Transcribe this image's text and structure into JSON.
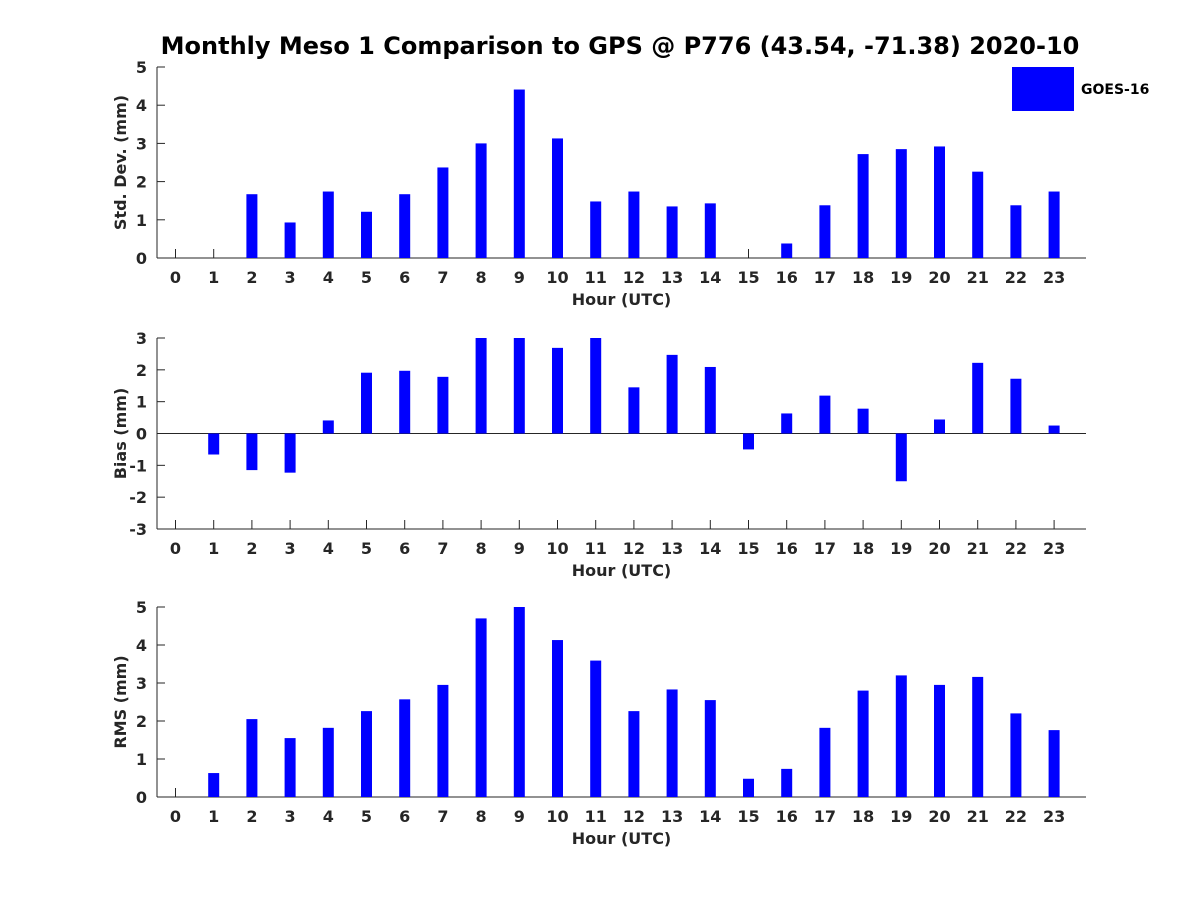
{
  "title": "Monthly Meso 1 Comparison to GPS @ P776 (43.54, -71.38) 2020-10",
  "colors": {
    "bar": "#0000ff",
    "axis": "#262626"
  },
  "legend": {
    "label": "GOES-16",
    "placement": "top-right"
  },
  "chart_data": [
    {
      "type": "bar",
      "title": "",
      "xlabel": "Hour (UTC)",
      "ylabel": "Std. Dev. (mm)",
      "ylim": [
        0,
        5
      ],
      "yticks": [
        0,
        1,
        2,
        3,
        4,
        5
      ],
      "categories": [
        "0",
        "1",
        "2",
        "3",
        "4",
        "5",
        "6",
        "7",
        "8",
        "9",
        "10",
        "11",
        "12",
        "13",
        "14",
        "15",
        "16",
        "17",
        "18",
        "19",
        "20",
        "21",
        "22",
        "23"
      ],
      "series": [
        {
          "name": "GOES-16",
          "values": [
            0,
            0,
            1.67,
            0.93,
            1.74,
            1.21,
            1.67,
            2.37,
            3.0,
            4.41,
            3.13,
            1.48,
            1.74,
            1.35,
            1.43,
            0,
            0.38,
            1.38,
            2.72,
            2.85,
            2.92,
            2.26,
            1.38,
            1.74
          ]
        }
      ]
    },
    {
      "type": "bar",
      "title": "",
      "xlabel": "Hour (UTC)",
      "ylabel": "Bias (mm)",
      "ylim": [
        -3,
        3
      ],
      "yticks": [
        -3,
        -2,
        -1,
        0,
        1,
        2,
        3
      ],
      "categories": [
        "0",
        "1",
        "2",
        "3",
        "4",
        "5",
        "6",
        "7",
        "8",
        "9",
        "10",
        "11",
        "12",
        "13",
        "14",
        "15",
        "16",
        "17",
        "18",
        "19",
        "20",
        "21",
        "22",
        "23"
      ],
      "series": [
        {
          "name": "GOES-16",
          "values": [
            0,
            -0.66,
            -1.15,
            -1.23,
            0.41,
            1.91,
            1.97,
            1.78,
            3.0,
            3.0,
            2.69,
            3.0,
            1.45,
            2.47,
            2.09,
            -0.5,
            0.63,
            1.19,
            0.78,
            -1.5,
            0.44,
            2.22,
            1.72,
            0.25
          ]
        }
      ]
    },
    {
      "type": "bar",
      "title": "",
      "xlabel": "Hour (UTC)",
      "ylabel": "RMS (mm)",
      "ylim": [
        0,
        5
      ],
      "yticks": [
        0,
        1,
        2,
        3,
        4,
        5
      ],
      "categories": [
        "0",
        "1",
        "2",
        "3",
        "4",
        "5",
        "6",
        "7",
        "8",
        "9",
        "10",
        "11",
        "12",
        "13",
        "14",
        "15",
        "16",
        "17",
        "18",
        "19",
        "20",
        "21",
        "22",
        "23"
      ],
      "series": [
        {
          "name": "GOES-16",
          "values": [
            0,
            0.63,
            2.05,
            1.55,
            1.82,
            2.26,
            2.57,
            2.95,
            4.7,
            5.0,
            4.13,
            3.59,
            2.26,
            2.83,
            2.55,
            0.48,
            0.74,
            1.82,
            2.8,
            3.2,
            2.95,
            3.16,
            2.2,
            1.76
          ]
        }
      ]
    }
  ]
}
